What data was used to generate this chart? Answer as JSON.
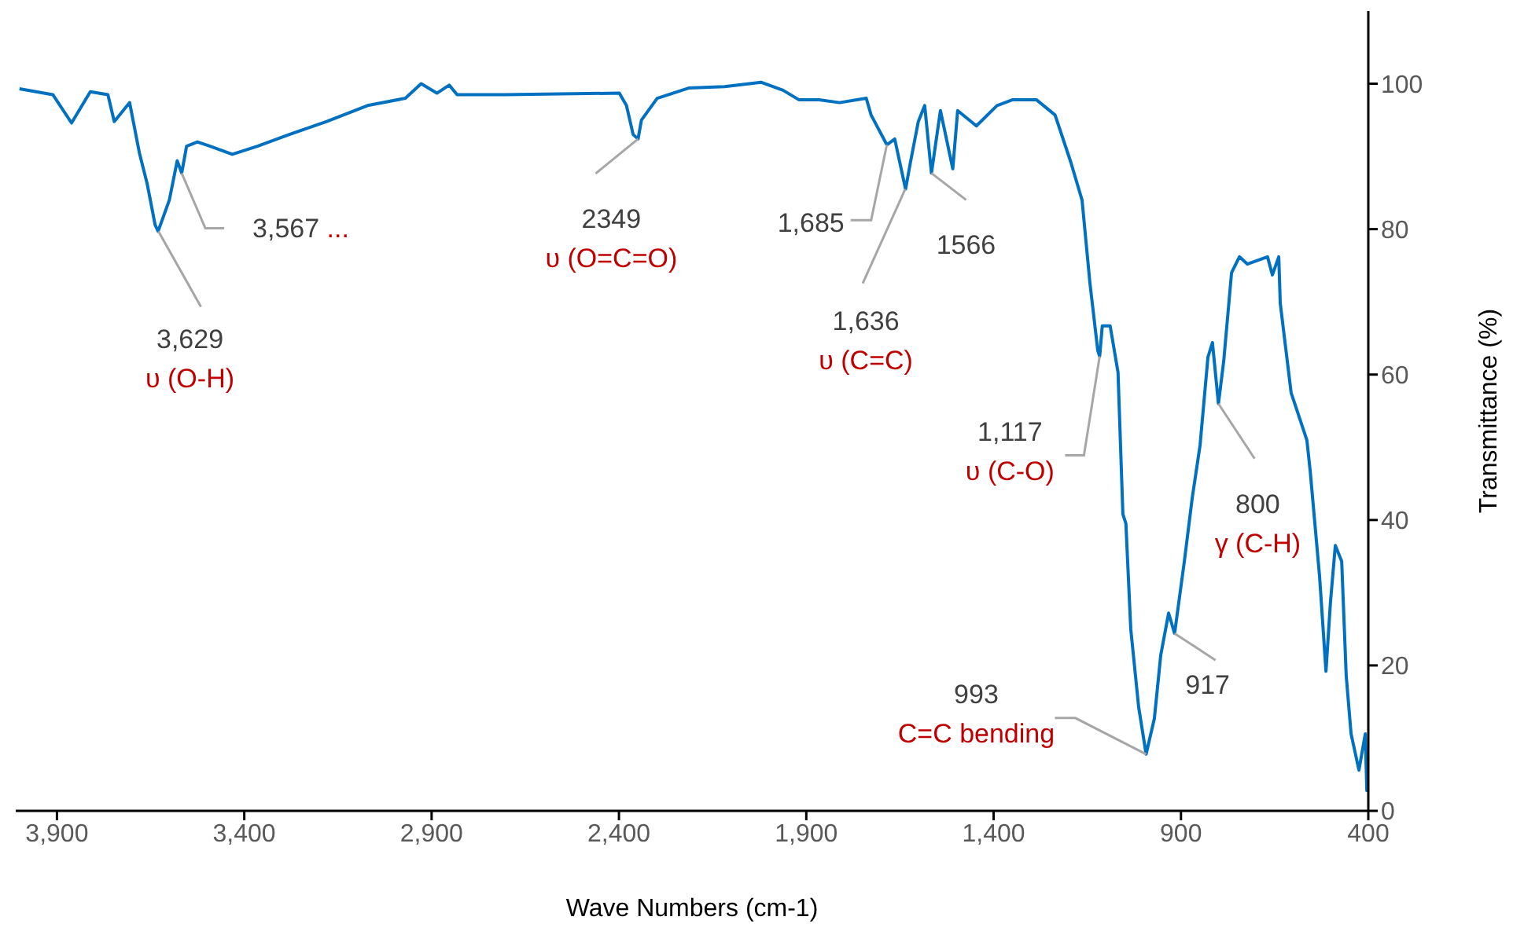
{
  "chart_data": {
    "type": "line",
    "xlabel": "Wave Numbers (cm-1)",
    "ylabel": "Transmittance (%)",
    "xlim": [
      4010,
      400
    ],
    "xticks": [
      {
        "value": 3900,
        "label": "3,900"
      },
      {
        "value": 3400,
        "label": "3,400"
      },
      {
        "value": 2900,
        "label": "2,900"
      },
      {
        "value": 2400,
        "label": "2,400"
      },
      {
        "value": 1900,
        "label": "1,900"
      },
      {
        "value": 1400,
        "label": "1,400"
      },
      900,
      400
    ],
    "ylim": [
      0,
      110
    ],
    "yticks": [
      0,
      20,
      40,
      60,
      80,
      100
    ],
    "marker": "none",
    "series": [
      {
        "color": "#0070c0",
        "x": [
          4000,
          3911,
          3861,
          3811,
          3764,
          3747,
          3706,
          3680,
          3659,
          3638,
          3630,
          3600,
          3579,
          3567,
          3554,
          3525,
          3491,
          3432,
          3365,
          3281,
          3180,
          3071,
          2970,
          2928,
          2886,
          2853,
          2832,
          2706,
          2399,
          2380,
          2362,
          2349,
          2340,
          2298,
          2214,
          2118,
          2021,
          1962,
          1920,
          1866,
          1811,
          1740,
          1727,
          1685,
          1664,
          1635,
          1622,
          1601,
          1584,
          1566,
          1542,
          1509,
          1496,
          1446,
          1391,
          1349,
          1328,
          1286,
          1236,
          1194,
          1164,
          1143,
          1122,
          1117,
          1110,
          1089,
          1068,
          1055,
          1047,
          1034,
          1013,
          993,
          971,
          954,
          933,
          917,
          891,
          870,
          849,
          828,
          816,
          800,
          786,
          765,
          744,
          723,
          669,
          656,
          639,
          635,
          606,
          564,
          555,
          530,
          513,
          501,
          488,
          471,
          459,
          446,
          425,
          408,
          404,
          400
        ],
        "values": [
          99.3,
          98.5,
          94.6,
          98.9,
          98.5,
          94.8,
          97.4,
          90.5,
          86.2,
          80.6,
          79.7,
          84,
          89.4,
          87.7,
          91.4,
          92,
          91.4,
          90.3,
          91.4,
          93,
          94.8,
          97,
          98,
          100,
          98.7,
          99.8,
          98.5,
          98.5,
          98.7,
          97,
          93,
          92.4,
          95,
          98,
          99.4,
          99.6,
          100.2,
          99.1,
          97.8,
          97.8,
          97.4,
          98,
          95.7,
          91.6,
          92.4,
          85.5,
          89.2,
          94.8,
          97,
          87.7,
          96.3,
          88.3,
          96.3,
          94.2,
          97,
          97.8,
          97.8,
          97.8,
          95.7,
          89.2,
          84,
          72.6,
          63.3,
          62.5,
          66.7,
          66.7,
          60.3,
          40.8,
          39.5,
          25,
          14.3,
          7.8,
          12.7,
          21.4,
          27.2,
          24.4,
          34.3,
          43,
          50.3,
          62.4,
          64.4,
          56,
          61.8,
          74,
          76.2,
          75.2,
          76.2,
          73.7,
          76.2,
          69.8,
          57.5,
          51,
          46.7,
          32.2,
          19.2,
          28.7,
          36.5,
          34.3,
          18.6,
          10.6,
          5.6,
          10.6,
          2.8,
          3
        ]
      }
    ],
    "annotations": [
      {
        "text": "3,629\nυ (O-H)",
        "x": 3629,
        "y": 79.7
      },
      {
        "text": "3,567\n...",
        "x": 3567,
        "y": 87.7
      },
      {
        "text": "2349\nυ (O=C=O)",
        "x": 2349,
        "y": 92.4
      },
      {
        "text": "1,685",
        "x": 1685,
        "y": 91.6
      },
      {
        "text": "1,636\nυ (C=C)",
        "x": 1636,
        "y": 85.5
      },
      {
        "text": "1566",
        "x": 1566,
        "y": 87.7
      },
      {
        "text": "1,117\nυ (C-O)",
        "x": 1117,
        "y": 62.5
      },
      {
        "text": "800\nγ (C-H)",
        "x": 800,
        "y": 56
      },
      {
        "text": "917",
        "x": 917,
        "y": 24.4
      },
      {
        "text": "993\nC=C bending",
        "x": 993,
        "y": 7.8
      }
    ]
  }
}
